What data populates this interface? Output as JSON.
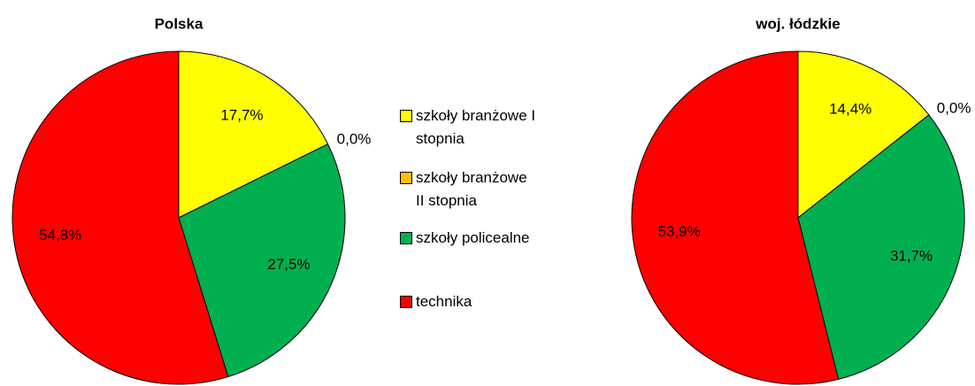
{
  "chart_data": [
    {
      "type": "pie",
      "title": "Polska",
      "categories": [
        "szkoły branżowe I stopnia",
        "szkoły branżowe II stopnia",
        "szkoły policealne",
        "technika"
      ],
      "colors": [
        "#ffff00",
        "#ffc000",
        "#00b050",
        "#ff0000"
      ],
      "values": [
        17.7,
        0.0,
        27.5,
        54.8
      ],
      "value_labels": [
        "17,7%",
        "0,0%",
        "27,5%",
        "54,8%"
      ]
    },
    {
      "type": "pie",
      "title": "woj. łódzkie",
      "values": [
        14.4,
        0.0,
        31.7,
        53.9
      ],
      "value_labels": [
        "14,4%",
        "0,0%",
        "31,7%",
        "53,9%"
      ]
    }
  ]
}
